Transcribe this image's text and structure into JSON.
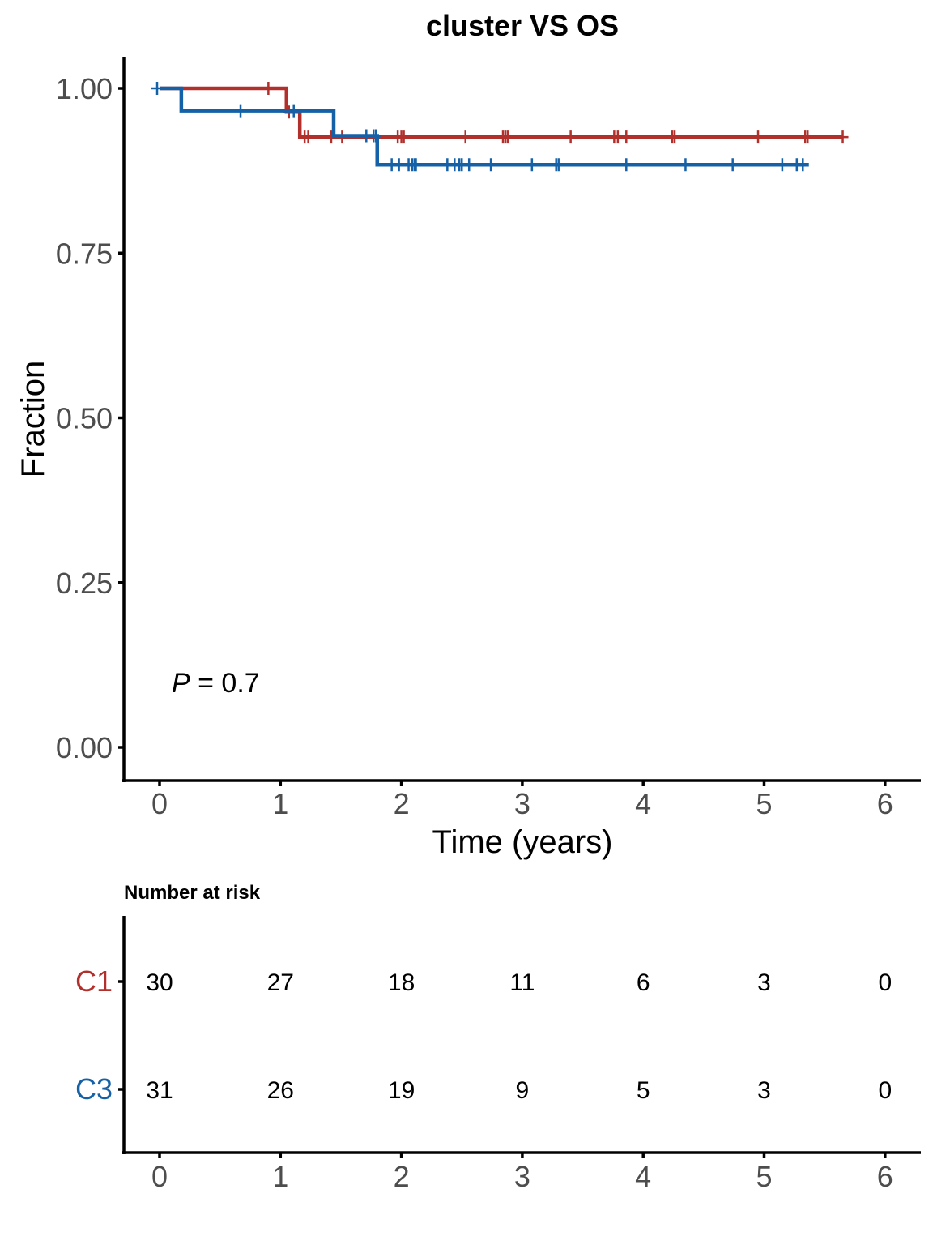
{
  "chart_data": {
    "type": "line",
    "subtype": "kaplan-meier",
    "title": "cluster VS OS",
    "xlabel": "Time (years)",
    "ylabel": "Fraction",
    "xlim": [
      -0.3,
      6.3
    ],
    "ylim": [
      -0.05,
      1.05
    ],
    "x_ticks": [
      "0",
      "1",
      "2",
      "3",
      "4",
      "5",
      "6"
    ],
    "y_ticks": [
      "0.00",
      "0.25",
      "0.50",
      "0.75",
      "1.00"
    ],
    "p_label": "P",
    "p_value_text": " = 0.7",
    "p_position_data": [
      0.1,
      0.09
    ],
    "series": [
      {
        "name": "C1",
        "color": "#B2302B",
        "steps": [
          [
            0,
            1.0
          ],
          [
            1.05,
            0.964
          ],
          [
            1.16,
            0.926
          ],
          [
            5.65,
            0.926
          ]
        ],
        "censor_times": [
          0.9,
          1.07,
          1.2,
          1.23,
          1.42,
          1.51,
          1.97,
          2.0,
          2.02,
          2.53,
          2.84,
          2.86,
          2.88,
          3.4,
          3.76,
          3.79,
          3.86,
          4.24,
          4.26,
          4.95,
          5.34,
          5.36,
          5.65
        ]
      },
      {
        "name": "C3",
        "color": "#1461A8",
        "steps": [
          [
            0,
            1.0
          ],
          [
            0.18,
            0.966
          ],
          [
            1.44,
            0.928
          ],
          [
            1.8,
            0.884
          ],
          [
            5.37,
            0.884
          ]
        ],
        "censor_times": [
          -0.02,
          0.67,
          1.11,
          1.71,
          1.77,
          1.79,
          1.92,
          1.98,
          2.06,
          2.09,
          2.11,
          2.12,
          2.38,
          2.44,
          2.48,
          2.5,
          2.56,
          2.74,
          3.08,
          3.28,
          3.3,
          3.86,
          4.35,
          4.74,
          5.15,
          5.27,
          5.32
        ]
      }
    ],
    "risk_table": {
      "title": "Number at risk",
      "times": [
        "0",
        "1",
        "2",
        "3",
        "4",
        "5",
        "6"
      ],
      "groups": [
        {
          "name": "C1",
          "color": "#B2302B",
          "counts": [
            "30",
            "27",
            "18",
            "11",
            "6",
            "3",
            "0"
          ]
        },
        {
          "name": "C3",
          "color": "#1461A8",
          "counts": [
            "31",
            "26",
            "19",
            "9",
            "5",
            "3",
            "0"
          ]
        }
      ]
    }
  }
}
